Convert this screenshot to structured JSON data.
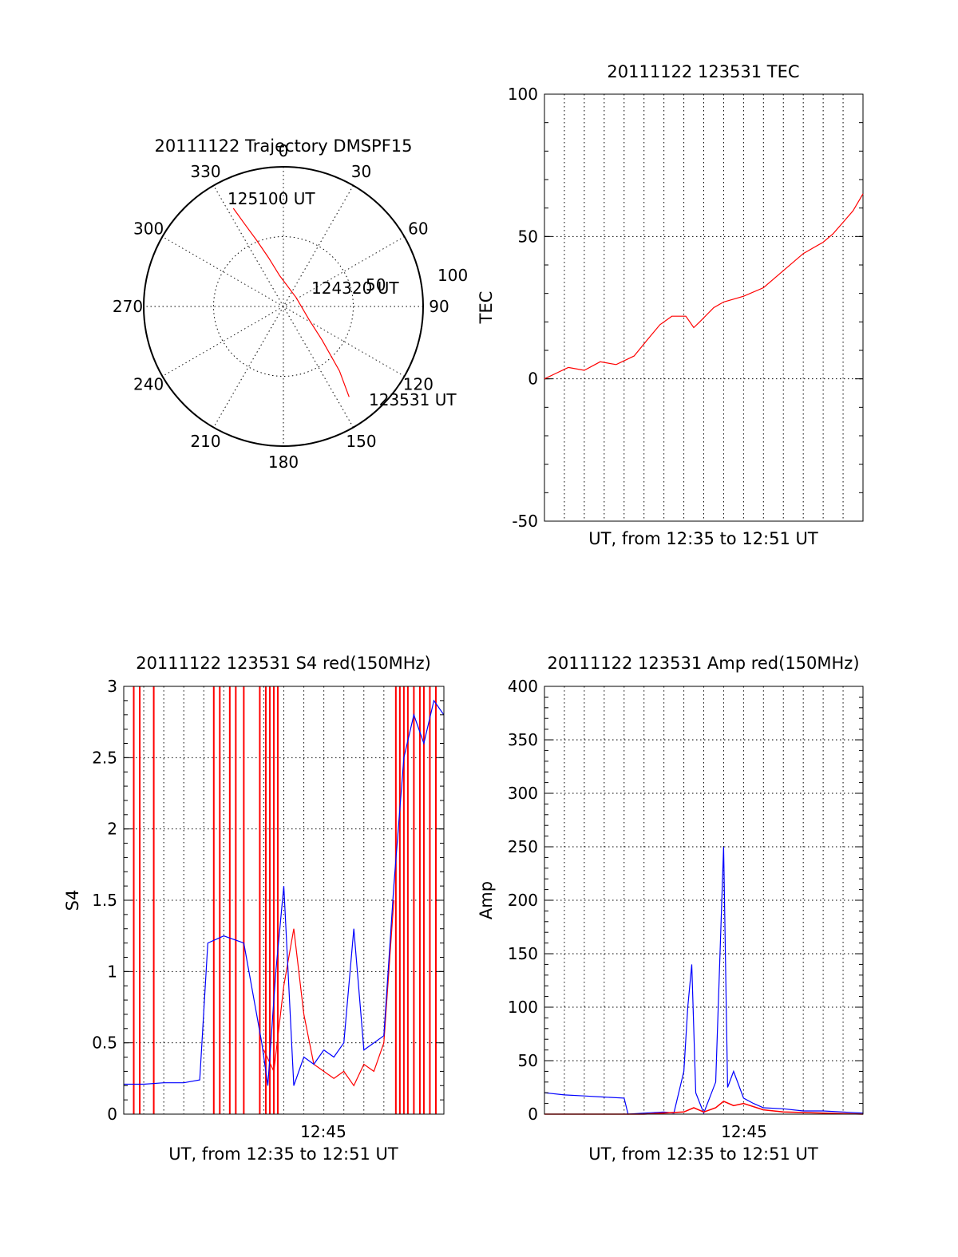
{
  "chart_data": [
    {
      "type": "polar",
      "title": "20111122 Trajectory DMSPF15",
      "angle_labels": [
        "0",
        "30",
        "60",
        "90",
        "120",
        "150",
        "180",
        "210",
        "240",
        "270",
        "300",
        "330"
      ],
      "radius_labels": [
        "50",
        "100"
      ],
      "annotations": [
        "125100 UT",
        "124320 UT",
        "123531 UT"
      ],
      "trajectory_color": "#ff0000",
      "trajectory": [
        {
          "azimuth": 333,
          "elevation": 19
        },
        {
          "azimuth": 335,
          "elevation": 32
        },
        {
          "azimuth": 338,
          "elevation": 44
        },
        {
          "azimuth": 343,
          "elevation": 57
        },
        {
          "azimuth": 353,
          "elevation": 70
        },
        {
          "azimuth": 55,
          "elevation": 80
        },
        {
          "azimuth": 118,
          "elevation": 71
        },
        {
          "azimuth": 131,
          "elevation": 57
        },
        {
          "azimuth": 139,
          "elevation": 35
        },
        {
          "azimuth": 144,
          "elevation": 18
        }
      ]
    },
    {
      "type": "line",
      "title": "20111122 123531 TEC",
      "xlabel": "UT, from 12:35 to 12:51 UT",
      "ylabel": "TEC",
      "ylim": [
        -50,
        100
      ],
      "yticks": [
        "-50",
        "0",
        "50",
        "100"
      ],
      "xlim_minutes": [
        0,
        16
      ],
      "grid": true,
      "series": [
        {
          "color": "#ff0000",
          "x": [
            0,
            0.6,
            1.2,
            2,
            2.8,
            3.6,
            4.5,
            5.2,
            5.8,
            6.4,
            7.1,
            7.5,
            7.8,
            8.5,
            9,
            10,
            11,
            12,
            13,
            14,
            14.5,
            15,
            15.5,
            16
          ],
          "y": [
            0,
            2,
            4,
            3,
            6,
            5,
            8,
            14,
            19,
            22,
            22,
            18,
            20,
            25,
            27,
            29,
            32,
            38,
            44,
            48,
            51,
            55,
            59,
            65
          ]
        }
      ]
    },
    {
      "type": "line",
      "title": "20111122 123531 S4 red(150MHz)",
      "xlabel": "UT, from 12:35 to 12:51 UT",
      "ylabel": "S4",
      "ylim": [
        0,
        3
      ],
      "yticks": [
        "0",
        "0.5",
        "1",
        "1.5",
        "2",
        "2.5",
        "3"
      ],
      "xtick_labels": [
        {
          "minute": 10,
          "label": "12:45"
        }
      ],
      "xlim_minutes": [
        0,
        16
      ],
      "grid": true,
      "series": [
        {
          "color": "#0000ff",
          "x": [
            0,
            1,
            2,
            3,
            3.8,
            4.2,
            5,
            6,
            6.9,
            7.2,
            7.6,
            8,
            8.5,
            9,
            9.5,
            10,
            10.5,
            11,
            11.5,
            12,
            12.5,
            13,
            13.5,
            14,
            14.5,
            15,
            15.5,
            16
          ],
          "y": [
            0.21,
            0.21,
            0.22,
            0.22,
            0.24,
            1.2,
            1.25,
            1.2,
            0.5,
            0.2,
            1.0,
            1.6,
            0.2,
            0.4,
            0.35,
            0.45,
            0.4,
            0.5,
            1.3,
            0.45,
            0.5,
            0.55,
            1.6,
            2.5,
            2.8,
            2.6,
            2.9,
            2.8
          ]
        },
        {
          "color": "#ff0000",
          "x": [
            7,
            7.5,
            8,
            8.5,
            9,
            9.5,
            10,
            10.5,
            11,
            11.5,
            12,
            12.5,
            13,
            13.5
          ],
          "y": [
            0.45,
            0.3,
            0.9,
            1.3,
            0.7,
            0.35,
            0.3,
            0.25,
            0.3,
            0.2,
            0.35,
            0.3,
            0.5,
            1.5
          ]
        }
      ],
      "red_spikes_minutes": [
        0.5,
        0.8,
        1.5,
        4.5,
        4.8,
        5.3,
        5.6,
        6.0,
        6.8,
        7.1,
        7.3,
        7.5,
        7.7,
        13.6,
        13.8,
        14.0,
        14.2,
        14.5,
        14.8,
        15.0,
        15.3,
        15.6
      ]
    },
    {
      "type": "line",
      "title": "20111122 123531 Amp red(150MHz)",
      "xlabel": "UT, from 12:35 to 12:51 UT",
      "ylabel": "Amp",
      "ylim": [
        0,
        400
      ],
      "yticks": [
        "0",
        "50",
        "100",
        "150",
        "200",
        "250",
        "300",
        "350",
        "400"
      ],
      "xtick_labels": [
        {
          "minute": 10,
          "label": "12:45"
        }
      ],
      "xlim_minutes": [
        0,
        16
      ],
      "grid": true,
      "series": [
        {
          "color": "#0000ff",
          "x": [
            0,
            1,
            2,
            3,
            4,
            4.2,
            5,
            6,
            6.5,
            7,
            7.2,
            7.4,
            7.6,
            8,
            8.6,
            9,
            9.2,
            9.5,
            10,
            10.5,
            11,
            12,
            13,
            14,
            15,
            16
          ],
          "y": [
            20,
            18,
            17,
            16,
            15,
            0,
            1,
            2,
            1,
            40,
            100,
            140,
            20,
            1,
            30,
            250,
            25,
            40,
            15,
            10,
            6,
            5,
            3,
            3,
            2,
            1
          ]
        },
        {
          "color": "#ff0000",
          "x": [
            0,
            5,
            7,
            7.5,
            8,
            8.6,
            9,
            9.5,
            10,
            11,
            12,
            16
          ],
          "y": [
            0,
            0,
            2,
            6,
            2,
            6,
            12,
            8,
            10,
            4,
            2,
            0
          ]
        }
      ]
    }
  ]
}
